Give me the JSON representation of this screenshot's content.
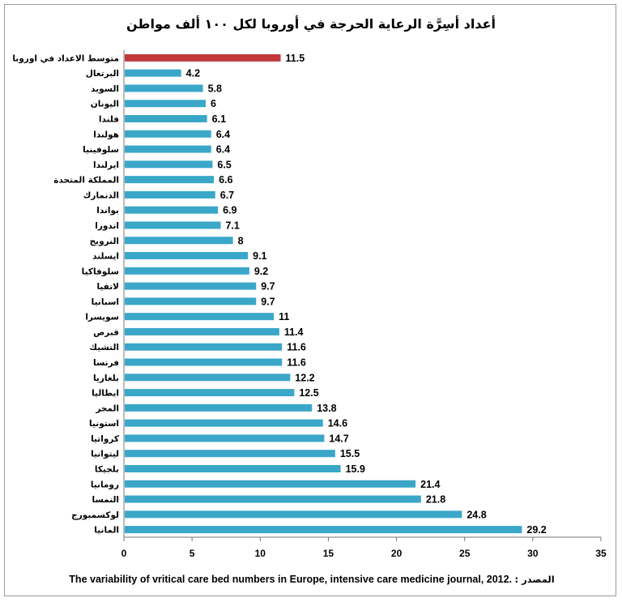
{
  "chart_data": {
    "type": "bar",
    "orientation": "horizontal",
    "title": "أعداد أسِرَّة الرعاية الحرجة في أوروبا لكل ١٠٠ ألف مواطن",
    "categories": [
      "متوسط الاعداد في اوروبا",
      "البرتغال",
      "السويد",
      "اليونان",
      "فلندا",
      "هولندا",
      "سلوفينيا",
      "ايرلندا",
      "المملكة المتحدة",
      "الدنمارك",
      "بواندا",
      "اندورا",
      "النرويج",
      "ايسلند",
      "سلوفاكيا",
      "لاتفيا",
      "اسبانيا",
      "سويسرا",
      "قبرص",
      "التشيك",
      "فرنسا",
      "بلغاريا",
      "ايطاليا",
      "المجر",
      "استونيا",
      "كرواتيا",
      "ليتوانيا",
      "بلجيكا",
      "رومانيا",
      "النمسا",
      "لوكسمبورج",
      "المانيا"
    ],
    "values": [
      11.5,
      4.2,
      5.8,
      6,
      6.1,
      6.4,
      6.4,
      6.5,
      6.6,
      6.7,
      6.9,
      7.1,
      8,
      9.1,
      9.2,
      9.7,
      9.7,
      11,
      11.4,
      11.6,
      11.6,
      12.2,
      12.5,
      13.8,
      14.6,
      14.7,
      15.5,
      15.9,
      21.4,
      21.8,
      24.8,
      29.2
    ],
    "value_labels": [
      "11.5",
      "4.2",
      "5.8",
      "6",
      "6.1",
      "6.4",
      "6.4",
      "6.5",
      "6.6",
      "6.7",
      "6.9",
      "7.1",
      "8",
      "9.1",
      "9.2",
      "9.7",
      "9.7",
      "11",
      "11.4",
      "11.6",
      "11.6",
      "12.2",
      "12.5",
      "13.8",
      "14.6",
      "14.7",
      "15.5",
      "15.9",
      "21.4",
      "21.8",
      "24.8",
      "29.2"
    ],
    "highlight_index": 0,
    "xlim": [
      0,
      35
    ],
    "x_ticks": [
      0,
      5,
      10,
      15,
      20,
      25,
      30,
      35
    ],
    "grid": false,
    "legend": "none",
    "colors": {
      "bar": "#3aa7c9",
      "highlight": "#c0393b"
    }
  },
  "source": {
    "label": "المصدر :",
    "text": "The variability of vritical care bed numbers in Europe, intensive care medicine journal, 2012."
  }
}
